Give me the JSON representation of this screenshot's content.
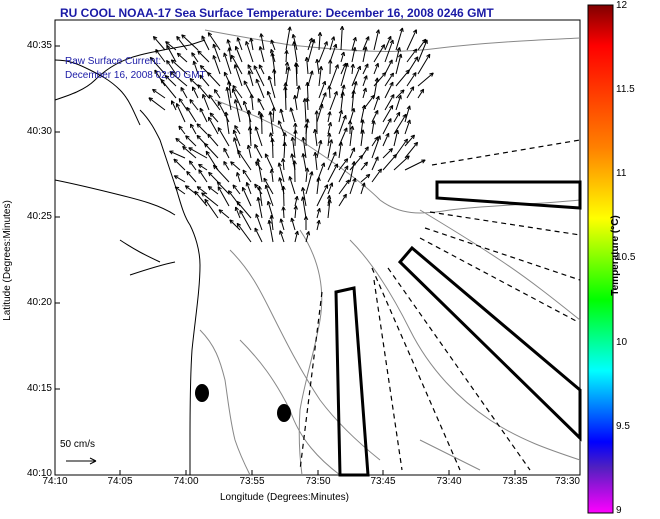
{
  "title": "RU COOL  NOAA-17  Sea Surface Temperature:  December 16, 2008 0246 GMT",
  "legend": {
    "current_label": "Raw Surface Current:",
    "current_date": "December 16, 2008 02:00 GMT",
    "scale_label": "50 cm/s"
  },
  "axes": {
    "xlabel": "Longitude (Degrees:Minutes)",
    "ylabel": "Latitude (Degrees:Minutes)",
    "xticks": [
      "74:10",
      "74:05",
      "74:00",
      "73:55",
      "73:50",
      "73:45",
      "73:40",
      "73:35",
      "73:30"
    ],
    "yticks": [
      "40:35",
      "40:30",
      "40:25",
      "40:20",
      "40:15",
      "40:10"
    ]
  },
  "colorbar": {
    "label": "Temperature (°C)",
    "ticks": [
      "12",
      "11.5",
      "11",
      "10.5",
      "10",
      "9.5",
      "9"
    ],
    "colors": [
      "#800000",
      "#ff0000",
      "#ff8000",
      "#ffff00",
      "#00ff00",
      "#00ffff",
      "#0000ff",
      "#ff00ff"
    ]
  }
}
